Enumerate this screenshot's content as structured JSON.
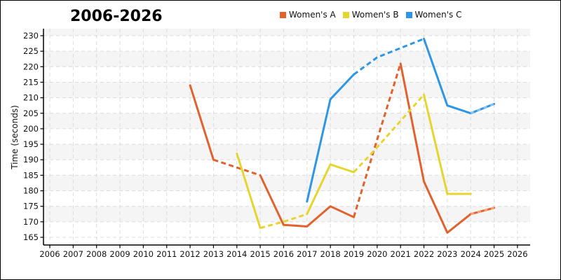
{
  "chart_data": {
    "type": "line",
    "title": "2006-2026",
    "ylabel": "Time (seconds)",
    "legend_position": "top-center",
    "grid": true,
    "x_ticks": [
      2006,
      2007,
      2008,
      2009,
      2010,
      2011,
      2012,
      2013,
      2014,
      2015,
      2016,
      2017,
      2018,
      2019,
      2020,
      2021,
      2022,
      2023,
      2024,
      2025,
      2026
    ],
    "y_ticks": [
      165,
      170,
      175,
      180,
      185,
      190,
      195,
      200,
      205,
      210,
      215,
      220,
      225,
      230
    ],
    "ylim": [
      165,
      230
    ],
    "xlim": [
      2006,
      2026
    ],
    "style": {
      "band_color": "#f5f5f5",
      "grid_color": "#dcdcdc",
      "axis_color": "#000000",
      "text_color": "#111111"
    },
    "series": [
      {
        "name": "Women's A",
        "color": "#e2622e",
        "light_color": "#f4a878",
        "points": [
          [
            2012,
            214
          ],
          [
            2013,
            190
          ],
          [
            2014,
            187.5
          ],
          [
            2015,
            185
          ],
          [
            2016,
            169
          ],
          [
            2017,
            168.5
          ],
          [
            2018,
            175
          ],
          [
            2019,
            171.5
          ],
          [
            2020,
            196.5
          ],
          [
            2021,
            221
          ],
          [
            2022,
            183
          ],
          [
            2023,
            166.5
          ],
          [
            2024,
            172.5
          ],
          [
            2025,
            174.5
          ]
        ],
        "dashed_ranges": [
          [
            2013,
            2015
          ],
          [
            2019,
            2021
          ]
        ],
        "dashed_overlay_ranges": [
          [
            2024,
            2025
          ]
        ]
      },
      {
        "name": "Women's B",
        "color": "#e6d52f",
        "light_color": "#f3eb9a",
        "points": [
          [
            2014,
            192
          ],
          [
            2015,
            168
          ],
          [
            2016,
            170
          ],
          [
            2017,
            172.5
          ],
          [
            2018,
            188.5
          ],
          [
            2019,
            186
          ],
          [
            2020,
            194
          ],
          [
            2021,
            202.5
          ],
          [
            2022,
            211
          ],
          [
            2023,
            179
          ],
          [
            2024,
            179
          ]
        ],
        "dashed_ranges": [
          [
            2015,
            2017
          ],
          [
            2019,
            2022
          ]
        ],
        "dashed_overlay_ranges": []
      },
      {
        "name": "Women's C",
        "color": "#2e96e2",
        "light_color": "#8cc4f0",
        "points": [
          [
            2017,
            176.5
          ],
          [
            2018,
            209.5
          ],
          [
            2019,
            217.5
          ],
          [
            2020,
            223
          ],
          [
            2021,
            226
          ],
          [
            2022,
            229
          ],
          [
            2023,
            207.5
          ],
          [
            2024,
            205
          ],
          [
            2025,
            208
          ]
        ],
        "dashed_ranges": [
          [
            2019,
            2022
          ]
        ],
        "dashed_overlay_ranges": [
          [
            2024,
            2025
          ]
        ]
      }
    ]
  }
}
